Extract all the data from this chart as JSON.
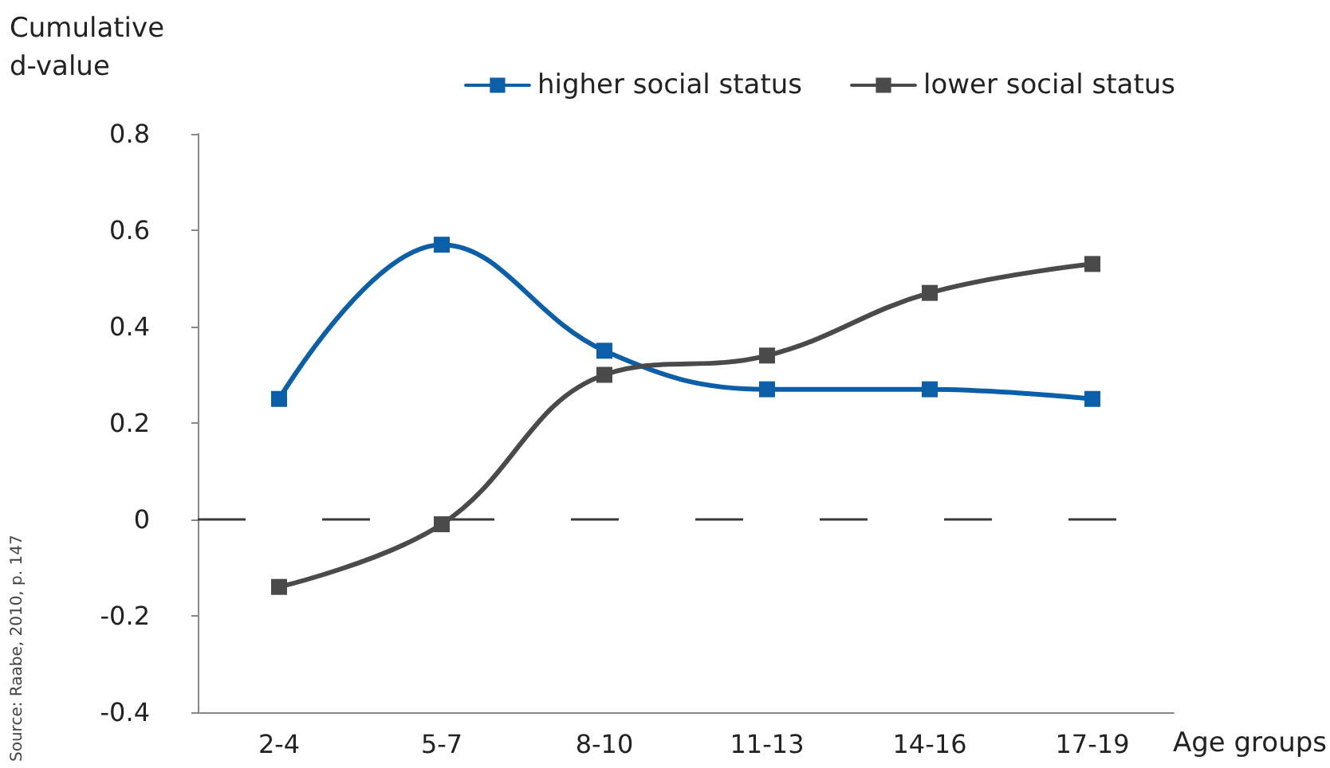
{
  "chart_data": {
    "type": "line",
    "ylabel": "Cumulative d-value",
    "xlabel": "Age groups",
    "annotations": [
      "Source: Raabe, 2010, p. 147"
    ],
    "categories": [
      "2-4",
      "5-7",
      "8-10",
      "11-13",
      "14-16",
      "17-19"
    ],
    "series": [
      {
        "name": "higher social status",
        "color": "#0a5fa8",
        "values": [
          0.25,
          0.57,
          0.35,
          0.27,
          0.27,
          0.25
        ]
      },
      {
        "name": "lower social status",
        "color": "#4a4a4a",
        "values": [
          -0.14,
          -0.01,
          0.3,
          0.34,
          0.47,
          0.53
        ]
      }
    ],
    "ylim": [
      -0.4,
      0.8
    ],
    "yticks": [
      -0.4,
      -0.2,
      0,
      0.2,
      0.4,
      0.6,
      0.8
    ],
    "ref_lines": [
      {
        "axis": "y",
        "value": 0,
        "label": null,
        "color": "#3a3a3a",
        "line_style": "dashed"
      }
    ],
    "grid": false,
    "legend": "top right",
    "marker": "square",
    "line_style": "solid"
  }
}
